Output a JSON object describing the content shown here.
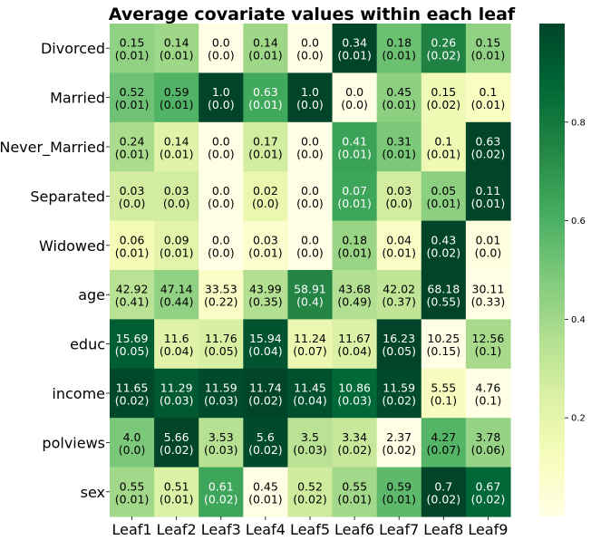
{
  "chart_data": {
    "type": "heatmap",
    "title": "Average covariate values within each leaf",
    "columns": [
      "Leaf1",
      "Leaf2",
      "Leaf3",
      "Leaf4",
      "Leaf5",
      "Leaf6",
      "Leaf7",
      "Leaf8",
      "Leaf9"
    ],
    "rows": [
      "Divorced",
      "Married",
      "Never_Married",
      "Separated",
      "Widowed",
      "age",
      "educ",
      "income",
      "polviews",
      "sex"
    ],
    "cell_text": [
      [
        [
          "0.15",
          "(0.01)"
        ],
        [
          "0.14",
          "(0.01)"
        ],
        [
          "0.0",
          "(0.0)"
        ],
        [
          "0.14",
          "(0.01)"
        ],
        [
          "0.0",
          "(0.0)"
        ],
        [
          "0.34",
          "(0.01)"
        ],
        [
          "0.18",
          "(0.01)"
        ],
        [
          "0.26",
          "(0.02)"
        ],
        [
          "0.15",
          "(0.01)"
        ]
      ],
      [
        [
          "0.52",
          "(0.01)"
        ],
        [
          "0.59",
          "(0.01)"
        ],
        [
          "1.0",
          "(0.0)"
        ],
        [
          "0.63",
          "(0.01)"
        ],
        [
          "1.0",
          "(0.0)"
        ],
        [
          "0.0",
          "(0.0)"
        ],
        [
          "0.45",
          "(0.01)"
        ],
        [
          "0.15",
          "(0.02)"
        ],
        [
          "0.1",
          "(0.01)"
        ]
      ],
      [
        [
          "0.24",
          "(0.01)"
        ],
        [
          "0.14",
          "(0.01)"
        ],
        [
          "0.0",
          "(0.0)"
        ],
        [
          "0.17",
          "(0.01)"
        ],
        [
          "0.0",
          "(0.0)"
        ],
        [
          "0.41",
          "(0.01)"
        ],
        [
          "0.31",
          "(0.01)"
        ],
        [
          "0.1",
          "(0.01)"
        ],
        [
          "0.63",
          "(0.02)"
        ]
      ],
      [
        [
          "0.03",
          "(0.0)"
        ],
        [
          "0.03",
          "(0.0)"
        ],
        [
          "0.0",
          "(0.0)"
        ],
        [
          "0.02",
          "(0.0)"
        ],
        [
          "0.0",
          "(0.0)"
        ],
        [
          "0.07",
          "(0.01)"
        ],
        [
          "0.03",
          "(0.0)"
        ],
        [
          "0.05",
          "(0.01)"
        ],
        [
          "0.11",
          "(0.01)"
        ]
      ],
      [
        [
          "0.06",
          "(0.01)"
        ],
        [
          "0.09",
          "(0.01)"
        ],
        [
          "0.0",
          "(0.0)"
        ],
        [
          "0.03",
          "(0.01)"
        ],
        [
          "0.0",
          "(0.0)"
        ],
        [
          "0.18",
          "(0.01)"
        ],
        [
          "0.04",
          "(0.01)"
        ],
        [
          "0.43",
          "(0.02)"
        ],
        [
          "0.01",
          "(0.0)"
        ]
      ],
      [
        [
          "42.92",
          "(0.41)"
        ],
        [
          "47.14",
          "(0.44)"
        ],
        [
          "33.53",
          "(0.22)"
        ],
        [
          "43.99",
          "(0.35)"
        ],
        [
          "58.91",
          "(0.4)"
        ],
        [
          "43.68",
          "(0.49)"
        ],
        [
          "42.02",
          "(0.37)"
        ],
        [
          "68.18",
          "(0.55)"
        ],
        [
          "30.11",
          "(0.33)"
        ]
      ],
      [
        [
          "15.69",
          "(0.05)"
        ],
        [
          "11.6",
          "(0.04)"
        ],
        [
          "11.76",
          "(0.05)"
        ],
        [
          "15.94",
          "(0.04)"
        ],
        [
          "11.24",
          "(0.07)"
        ],
        [
          "11.67",
          "(0.04)"
        ],
        [
          "16.23",
          "(0.05)"
        ],
        [
          "10.25",
          "(0.15)"
        ],
        [
          "12.56",
          "(0.1)"
        ]
      ],
      [
        [
          "11.65",
          "(0.02)"
        ],
        [
          "11.29",
          "(0.03)"
        ],
        [
          "11.59",
          "(0.03)"
        ],
        [
          "11.74",
          "(0.02)"
        ],
        [
          "11.45",
          "(0.04)"
        ],
        [
          "10.86",
          "(0.03)"
        ],
        [
          "11.59",
          "(0.02)"
        ],
        [
          "5.55",
          "(0.1)"
        ],
        [
          "4.76",
          "(0.1)"
        ]
      ],
      [
        [
          "4.0",
          "(0.0)"
        ],
        [
          "5.66",
          "(0.02)"
        ],
        [
          "3.53",
          "(0.03)"
        ],
        [
          "5.6",
          "(0.02)"
        ],
        [
          "3.5",
          "(0.03)"
        ],
        [
          "3.34",
          "(0.02)"
        ],
        [
          "2.37",
          "(0.02)"
        ],
        [
          "4.27",
          "(0.07)"
        ],
        [
          "3.78",
          "(0.06)"
        ]
      ],
      [
        [
          "0.55",
          "(0.01)"
        ],
        [
          "0.51",
          "(0.01)"
        ],
        [
          "0.61",
          "(0.02)"
        ],
        [
          "0.45",
          "(0.01)"
        ],
        [
          "0.52",
          "(0.02)"
        ],
        [
          "0.55",
          "(0.01)"
        ],
        [
          "0.59",
          "(0.01)"
        ],
        [
          "0.7",
          "(0.02)"
        ],
        [
          "0.67",
          "(0.02)"
        ]
      ]
    ],
    "color_values": [
      [
        0.44,
        0.41,
        0.0,
        0.41,
        0.0,
        1.0,
        0.53,
        0.76,
        0.44
      ],
      [
        0.52,
        0.59,
        1.0,
        0.63,
        1.0,
        0.0,
        0.45,
        0.15,
        0.1
      ],
      [
        0.38,
        0.22,
        0.0,
        0.27,
        0.0,
        0.65,
        0.49,
        0.16,
        1.0
      ],
      [
        0.27,
        0.27,
        0.0,
        0.18,
        0.0,
        0.64,
        0.27,
        0.45,
        1.0
      ],
      [
        0.14,
        0.21,
        0.0,
        0.07,
        0.0,
        0.42,
        0.09,
        1.0,
        0.02
      ],
      [
        0.34,
        0.44,
        0.09,
        0.36,
        0.75,
        0.36,
        0.32,
        1.0,
        0.0
      ],
      [
        0.91,
        0.22,
        0.25,
        0.95,
        0.17,
        0.24,
        1.0,
        0.0,
        0.39
      ],
      [
        0.99,
        0.93,
        0.98,
        1.0,
        0.96,
        0.87,
        0.98,
        0.11,
        0.0
      ],
      [
        0.49,
        1.0,
        0.35,
        0.98,
        0.34,
        0.3,
        0.0,
        0.58,
        0.43
      ],
      [
        0.4,
        0.24,
        0.64,
        0.0,
        0.28,
        0.4,
        0.56,
        1.0,
        0.88
      ]
    ],
    "colorbar": {
      "colormap": "YlGn",
      "range": [
        0.0,
        1.0
      ],
      "ticks": [
        "0.2",
        "0.4",
        "0.6",
        "0.8"
      ]
    },
    "grid": false,
    "legend": "colorbar-right"
  }
}
